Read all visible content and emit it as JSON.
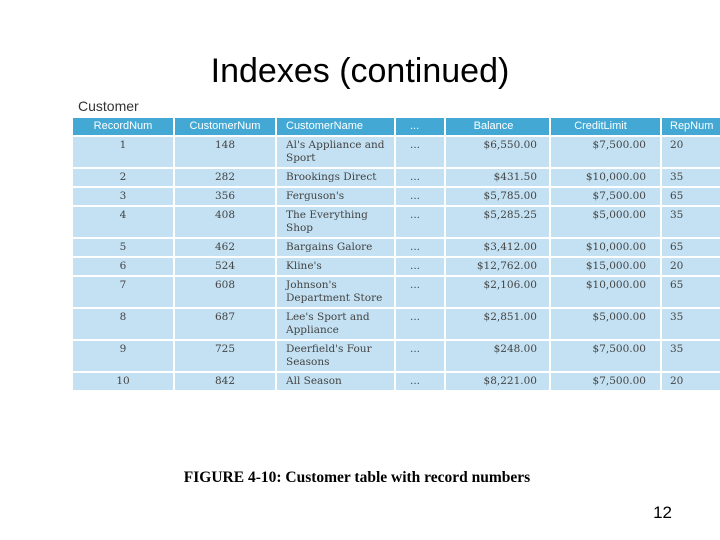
{
  "slide": {
    "title": "Indexes (continued)",
    "page_number": "12"
  },
  "table": {
    "caption": "Customer",
    "columns": [
      "RecordNum",
      "CustomerNum",
      "CustomerName",
      "...",
      "Balance",
      "CreditLimit",
      "RepNum"
    ],
    "rows": [
      [
        "1",
        "148",
        "Al's Appliance and Sport",
        "...",
        "$6,550.00",
        "$7,500.00",
        "20"
      ],
      [
        "2",
        "282",
        "Brookings Direct",
        "...",
        "$431.50",
        "$10,000.00",
        "35"
      ],
      [
        "3",
        "356",
        "Ferguson's",
        "...",
        "$5,785.00",
        "$7,500.00",
        "65"
      ],
      [
        "4",
        "408",
        "The Everything Shop",
        "...",
        "$5,285.25",
        "$5,000.00",
        "35"
      ],
      [
        "5",
        "462",
        "Bargains Galore",
        "...",
        "$3,412.00",
        "$10,000.00",
        "65"
      ],
      [
        "6",
        "524",
        "Kline's",
        "...",
        "$12,762.00",
        "$15,000.00",
        "20"
      ],
      [
        "7",
        "608",
        "Johnson's Department Store",
        "...",
        "$2,106.00",
        "$10,000.00",
        "65"
      ],
      [
        "8",
        "687",
        "Lee's Sport and Appliance",
        "...",
        "$2,851.00",
        "$5,000.00",
        "35"
      ],
      [
        "9",
        "725",
        "Deerfield's Four Seasons",
        "...",
        "$248.00",
        "$7,500.00",
        "35"
      ],
      [
        "10",
        "842",
        "All Season",
        "...",
        "$8,221.00",
        "$7,500.00",
        "20"
      ]
    ]
  },
  "figure_caption": "FIGURE 4-10: Customer table with record numbers"
}
